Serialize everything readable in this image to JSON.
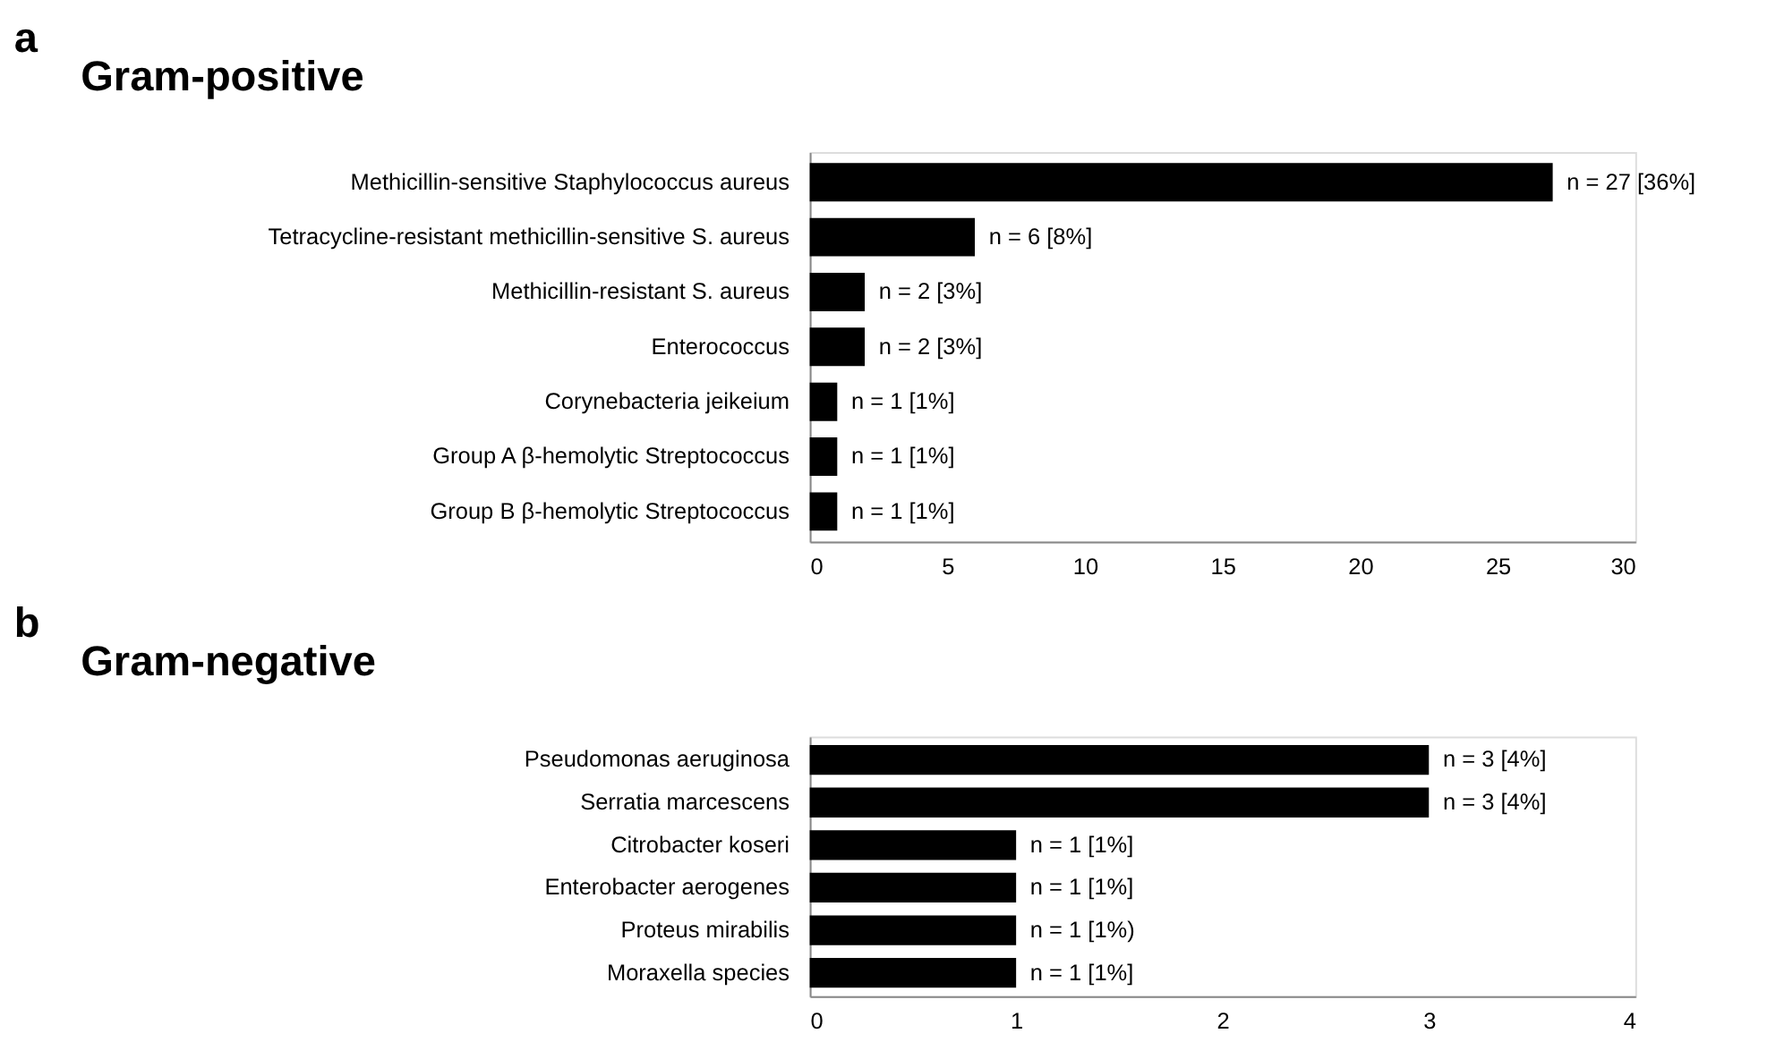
{
  "chart_data": [
    {
      "type": "bar",
      "orientation": "horizontal",
      "title": "Gram-positive",
      "annotations": [
        "a"
      ],
      "color": "#000000",
      "categories": [
        "Methicillin-sensitive Staphylococcus aureus",
        "Tetracycline-resistant methicillin-sensitive S. aureus",
        "Methicillin-resistant  S. aureus",
        "Enterococcus",
        "Corynebacteria jeikeium",
        "Group A β-hemolytic Streptococcus",
        "Group B β-hemolytic Streptococcus"
      ],
      "values": [
        27,
        6,
        2,
        2,
        1,
        1,
        1
      ],
      "value_labels": [
        "n = 27 [36%]",
        "n = 6 [8%]",
        "n = 2 [3%]",
        "n = 2 [3%]",
        "n = 1 [1%]",
        "n = 1 [1%]",
        "n = 1 [1%]"
      ],
      "xlim": [
        0,
        30
      ],
      "xticks": [
        0,
        5,
        10,
        15,
        20,
        25,
        30
      ],
      "grid": false
    },
    {
      "type": "bar",
      "orientation": "horizontal",
      "title": "Gram-negative",
      "annotations": [
        "b"
      ],
      "color": "#000000",
      "categories": [
        "Pseudomonas aeruginosa",
        "Serratia marcescens",
        "Citrobacter koseri ",
        "Enterobacter aerogenes",
        "Proteus mirabilis",
        "Moraxella species"
      ],
      "values": [
        3,
        3,
        1,
        1,
        1,
        1
      ],
      "value_labels": [
        "n = 3 [4%]",
        "n = 3 [4%]",
        "n = 1 [1%]",
        "n = 1 [1%]",
        "n = 1 [1%)",
        "n = 1 [1%]"
      ],
      "xlim": [
        0,
        4
      ],
      "xticks": [
        0,
        1,
        2,
        3,
        4
      ],
      "grid": false
    }
  ]
}
